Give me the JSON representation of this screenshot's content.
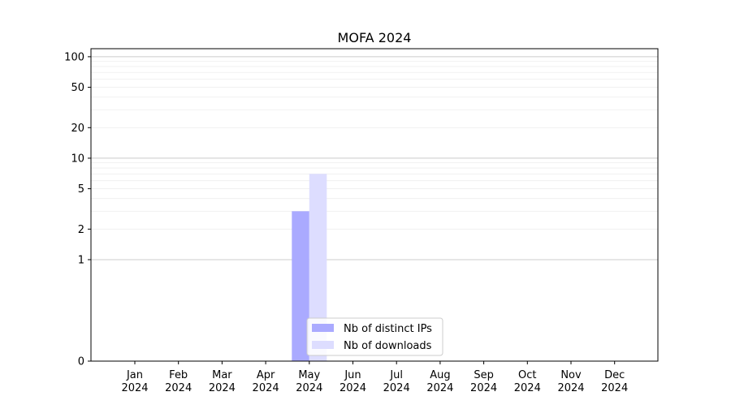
{
  "chart_data": {
    "type": "bar",
    "title": "MOFA 2024",
    "xlabel": "",
    "ylabel": "",
    "y_scale": "symlog",
    "ylim": [
      0,
      120
    ],
    "yticks": [
      0,
      1,
      2,
      5,
      10,
      20,
      50,
      100
    ],
    "ytick_labels": [
      "0",
      "1",
      "2",
      "5",
      "10",
      "20",
      "50",
      "100"
    ],
    "grid": true,
    "legend_position": "bottom-center",
    "categories": [
      "Jan\n2024",
      "Feb\n2024",
      "Mar\n2024",
      "Apr\n2024",
      "May\n2024",
      "Jun\n2024",
      "Jul\n2024",
      "Aug\n2024",
      "Sep\n2024",
      "Oct\n2024",
      "Nov\n2024",
      "Dec\n2024"
    ],
    "category_lines": [
      [
        "Jan",
        "2024"
      ],
      [
        "Feb",
        "2024"
      ],
      [
        "Mar",
        "2024"
      ],
      [
        "Apr",
        "2024"
      ],
      [
        "May",
        "2024"
      ],
      [
        "Jun",
        "2024"
      ],
      [
        "Jul",
        "2024"
      ],
      [
        "Aug",
        "2024"
      ],
      [
        "Sep",
        "2024"
      ],
      [
        "Oct",
        "2024"
      ],
      [
        "Nov",
        "2024"
      ],
      [
        "Dec",
        "2024"
      ]
    ],
    "series": [
      {
        "name": "Nb of distinct IPs",
        "color": "#aaaaff",
        "values": [
          0,
          0,
          0,
          0,
          3,
          0,
          0,
          0,
          0,
          0,
          0,
          0
        ]
      },
      {
        "name": "Nb of downloads",
        "color": "#ddddff",
        "values": [
          0,
          0,
          0,
          0,
          7,
          0,
          0,
          0,
          0,
          0,
          0,
          0
        ]
      }
    ]
  }
}
